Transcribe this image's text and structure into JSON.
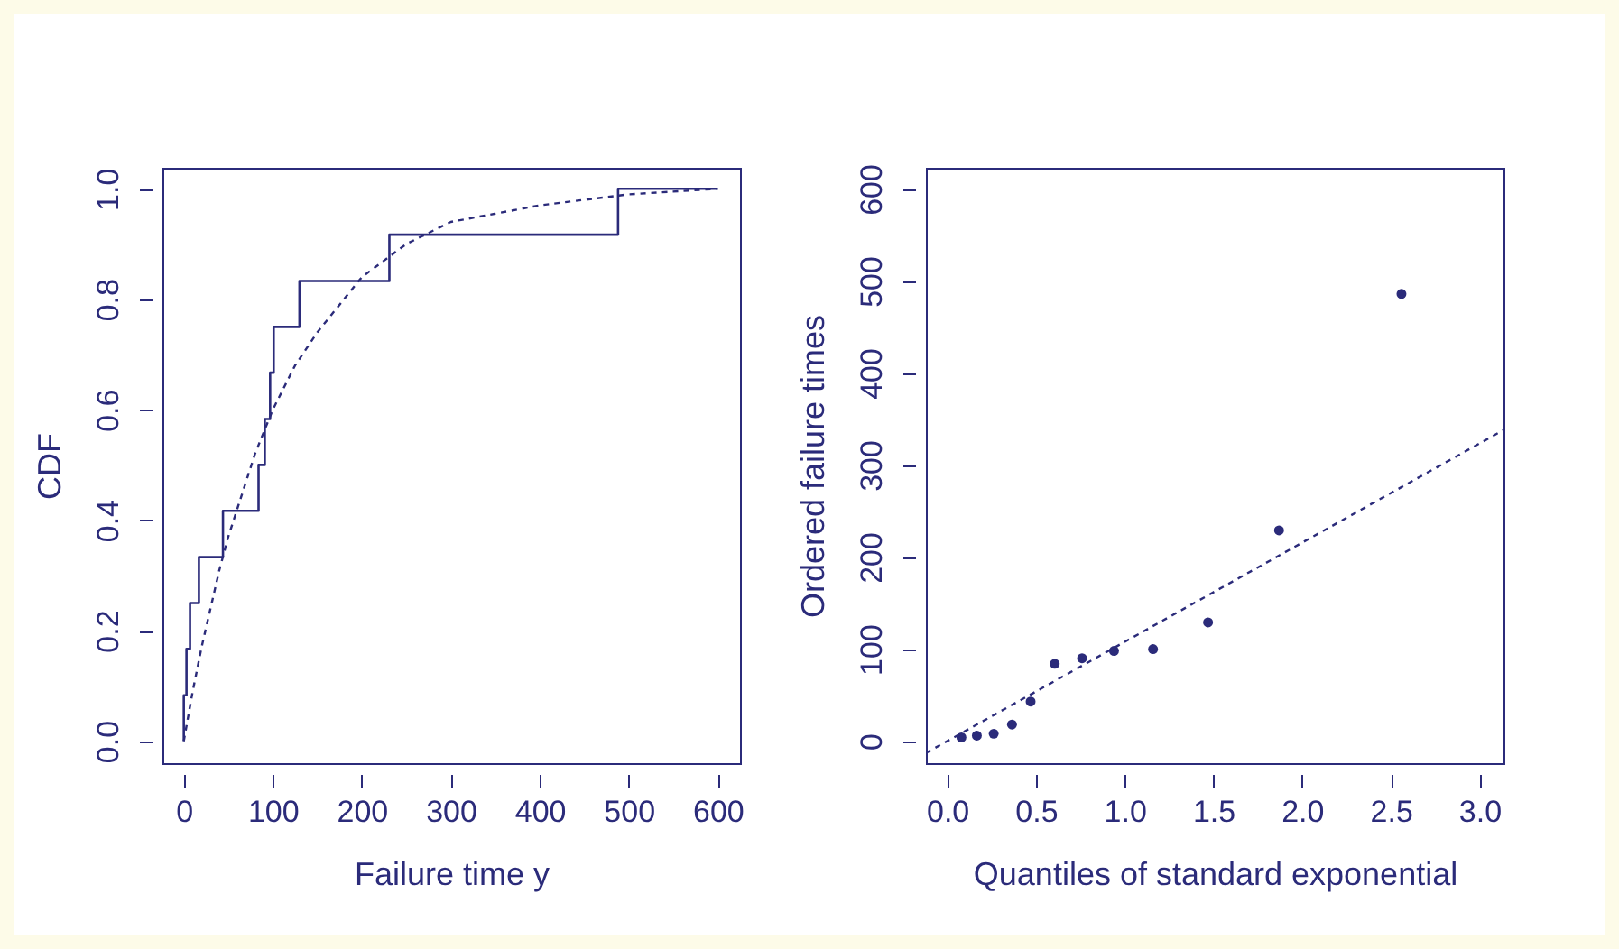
{
  "chart_data": [
    {
      "type": "step",
      "xlabel": "Failure time y",
      "ylabel": "CDF",
      "xlim": [
        -24,
        625
      ],
      "ylim": [
        -0.04,
        1.038
      ],
      "xticks": [
        0,
        100,
        200,
        300,
        400,
        500,
        600
      ],
      "yticks": [
        {
          "value": 0,
          "label": "0.0"
        },
        {
          "value": 0.2,
          "label": "0.2"
        },
        {
          "value": 0.4,
          "label": "0.4"
        },
        {
          "value": 0.6,
          "label": "0.6"
        },
        {
          "value": 0.8,
          "label": "0.8"
        },
        {
          "value": 1,
          "label": "1.0"
        }
      ],
      "grid": false,
      "series": [
        {
          "color": "#2b2b7a",
          "x": [
            0,
            0,
            3,
            7,
            17,
            44,
            84,
            91,
            97,
            101,
            130,
            231,
            488,
            600
          ],
          "values": [
            0,
            0.083,
            0.167,
            0.25,
            0.333,
            0.417,
            0.5,
            0.583,
            0.667,
            0.75,
            0.833,
            0.917,
            1,
            1
          ]
        },
        {
          "type": "line",
          "line_style": "dashed",
          "color": "#2b2b7a",
          "x": [
            0,
            10,
            20,
            30,
            40,
            50,
            60,
            80,
            100,
            125,
            150,
            200,
            250,
            300,
            400,
            500,
            600
          ],
          "values": [
            0,
            0.09,
            0.17,
            0.24,
            0.31,
            0.37,
            0.42,
            0.52,
            0.6,
            0.68,
            0.74,
            0.84,
            0.9,
            0.94,
            0.97,
            0.99,
            1
          ]
        }
      ]
    },
    {
      "type": "scatter",
      "xlabel": "Quantiles of standard exponential",
      "ylabel": "Ordered failure times",
      "xlim": [
        -0.12,
        3.135
      ],
      "ylim": [
        -24,
        623
      ],
      "xticks": [
        {
          "value": 0,
          "label": "0.0"
        },
        {
          "value": 0.5,
          "label": "0.5"
        },
        {
          "value": 1,
          "label": "1.0"
        },
        {
          "value": 1.5,
          "label": "1.5"
        },
        {
          "value": 2,
          "label": "2.0"
        },
        {
          "value": 2.5,
          "label": "2.5"
        },
        {
          "value": 3,
          "label": "3.0"
        }
      ],
      "yticks": [
        0,
        100,
        200,
        300,
        400,
        500,
        600
      ],
      "grid": false,
      "series": [
        {
          "marker": "circle",
          "color": "#2b2b7a",
          "x": [
            0.08,
            0.167,
            0.262,
            0.365,
            0.47,
            0.606,
            0.76,
            0.94,
            1.16,
            1.47,
            1.87,
            2.56
          ],
          "values": [
            4,
            6,
            8,
            18,
            43,
            84,
            90,
            98,
            100,
            129,
            229,
            486
          ]
        },
        {
          "type": "line",
          "line_style": "dashed",
          "color": "#2b2b7a",
          "x": [
            -0.12,
            3.135
          ],
          "values": [
            -13,
            338
          ]
        }
      ]
    }
  ]
}
